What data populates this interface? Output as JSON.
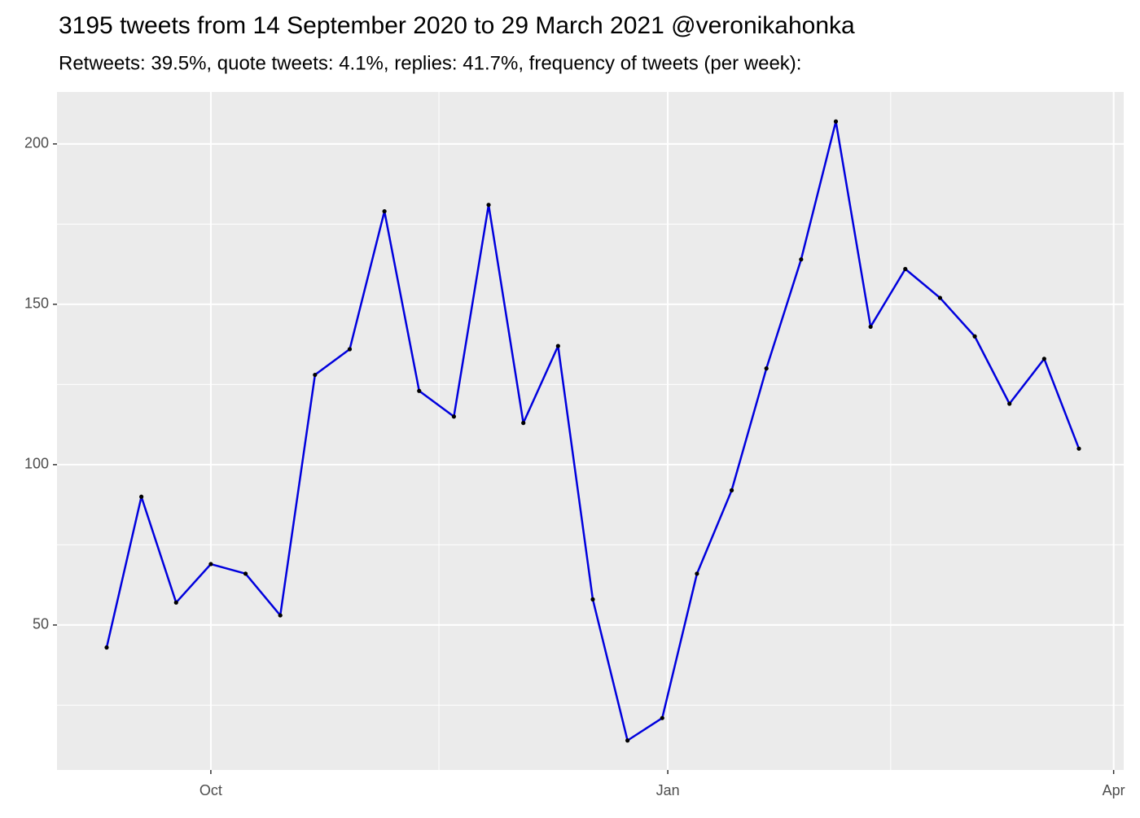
{
  "chart_data": {
    "type": "line",
    "title": "3195 tweets from 14 September 2020 to 29 March 2021 @veronikahonka",
    "subtitle": "Retweets: 39.5%, quote tweets: 4.1%, replies: 41.7%, frequency of tweets (per week):",
    "categories": [
      null,
      null,
      null,
      null,
      null,
      null,
      null,
      null,
      null,
      null,
      null,
      null,
      null,
      null,
      null,
      null,
      null,
      null,
      null,
      null,
      null,
      null,
      null,
      null,
      null,
      null,
      null,
      null,
      null
    ],
    "values": [
      43,
      90,
      57,
      69,
      66,
      53,
      128,
      136,
      179,
      123,
      115,
      181,
      113,
      137,
      58,
      14,
      21,
      66,
      92,
      130,
      164,
      207,
      143,
      161,
      152,
      140,
      119,
      133,
      105
    ],
    "color": "#0000dd",
    "point_color": "#000000",
    "xlim": [
      -1.43,
      29.29
    ],
    "xticks": [
      {
        "value": 3.0,
        "label": "Oct"
      },
      {
        "value": 16.16,
        "label": "Jan"
      },
      {
        "value": 29.0,
        "label": "Apr"
      }
    ],
    "xminorticks": [
      9.57,
      22.58
    ],
    "ylim": [
      4.8,
      216.2
    ],
    "yticks": [
      50,
      100,
      150,
      200
    ],
    "yminorticks": [
      25,
      75,
      125,
      175
    ],
    "grid": true
  }
}
